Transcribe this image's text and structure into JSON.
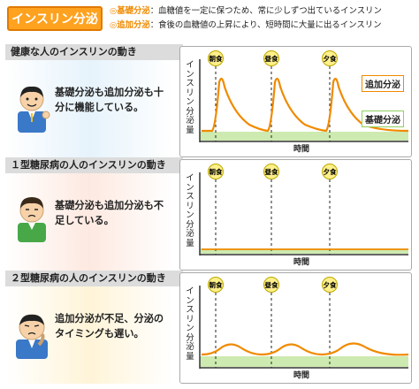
{
  "title": "インスリン分泌",
  "definitions": [
    {
      "mark": "◎",
      "term": "基礎分泌",
      "desc": "：血糖値を一定に保つため、常に少しずつ出ているインスリン"
    },
    {
      "mark": "◎",
      "term": "追加分泌",
      "desc": "：食後の血糖値の上昇により、短時間に大量に出るインスリン"
    }
  ],
  "sections": [
    {
      "header": "健康な人のインスリンの動き",
      "statement": "基礎分泌も追加分泌も十分に機能している。"
    },
    {
      "header": "１型糖尿病の人のインスリンの動き",
      "statement": "基礎分泌も追加分泌も不足している。"
    },
    {
      "header": "２型糖尿病の人のインスリンの動き",
      "statement": "追加分泌が不足、分泌のタイミングも遅い。"
    }
  ],
  "meals": [
    "朝食",
    "昼食",
    "夕食"
  ],
  "ylabel": "インスリン分泌量",
  "xlabel": "時間",
  "legend": {
    "additional": "追加分泌",
    "basal": "基礎分泌"
  },
  "colors": {
    "orange": "#f08a00",
    "basal_band": "#cdeab0",
    "title_bg": "#ffa21f",
    "head_bg": "#dcdcdc"
  },
  "chart_data": [
    {
      "type": "line",
      "title": "",
      "xlabel": "時間",
      "ylabel": "インスリン分泌量",
      "meals_at": [
        0.1,
        0.4,
        0.73
      ],
      "series": [
        {
          "name": "追加分泌",
          "profile": "sharp-peaks",
          "peak": 1.0,
          "baseline": 0.12
        }
      ],
      "basal_level": 0.12
    },
    {
      "type": "line",
      "title": "",
      "xlabel": "時間",
      "ylabel": "インスリン分泌量",
      "meals_at": [
        0.1,
        0.4,
        0.73
      ],
      "series": [
        {
          "profile": "flat",
          "baseline": 0.03
        }
      ],
      "basal_level": 0.03
    },
    {
      "type": "line",
      "title": "",
      "xlabel": "時間",
      "ylabel": "インスリン分泌量",
      "meals_at": [
        0.1,
        0.4,
        0.73
      ],
      "series": [
        {
          "profile": "low-delayed-humps",
          "peak": 0.3,
          "baseline": 0.1
        }
      ],
      "basal_level": 0.1
    }
  ]
}
